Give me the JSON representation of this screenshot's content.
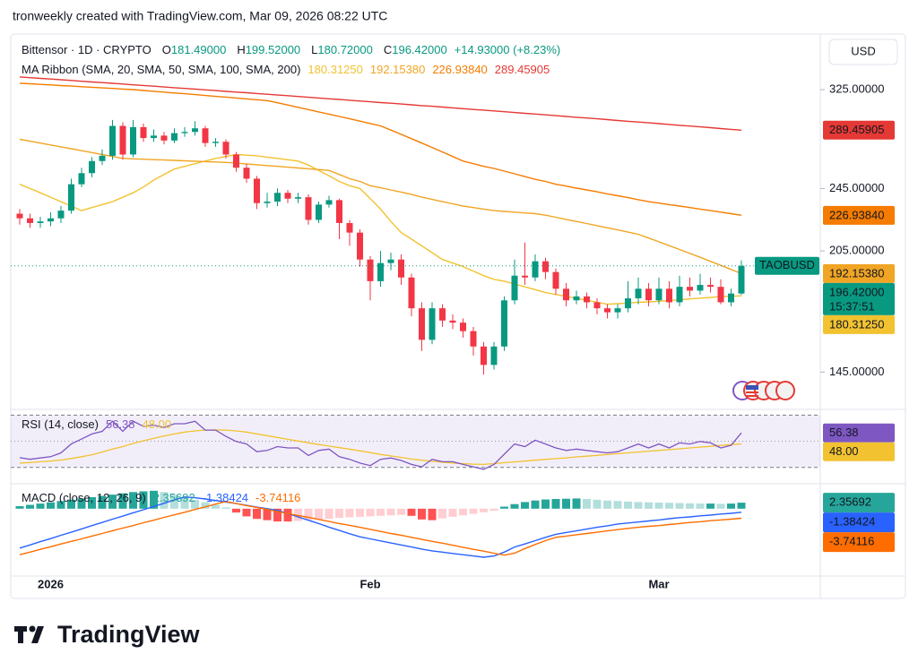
{
  "header": {
    "caption": "tronweekly created with TradingView.com, Mar 09, 2026 08:22 UTC"
  },
  "currency": "USD",
  "footer": {
    "brand": "TradingView"
  },
  "chart_data": [
    {
      "type": "candlestick",
      "title": "Bittensor · 1D · CRYPTO",
      "ohlc_labels": [
        {
          "key": "O",
          "value": "181.49000"
        },
        {
          "key": "H",
          "value": "199.52000"
        },
        {
          "key": "L",
          "value": "180.72000"
        },
        {
          "key": "C",
          "value": "196.42000"
        }
      ],
      "change": "+14.93000 (+8.23%)",
      "categories": [
        null,
        null,
        null,
        "2026",
        null,
        null,
        null,
        null,
        null,
        null,
        null,
        null,
        null,
        null,
        null,
        null,
        null,
        null,
        null,
        null,
        null,
        null,
        null,
        null,
        null,
        null,
        null,
        null,
        null,
        null,
        null,
        null,
        null,
        null,
        "Feb",
        null,
        null,
        null,
        null,
        null,
        null,
        null,
        null,
        null,
        null,
        null,
        null,
        null,
        null,
        null,
        null,
        null,
        null,
        null,
        null,
        null,
        null,
        null,
        null,
        null,
        null,
        null,
        "Mar",
        null,
        null,
        null,
        null,
        null,
        null,
        null,
        null
      ],
      "open": [
        228,
        225,
        222,
        223,
        225,
        230,
        248,
        256,
        265,
        269,
        293,
        270,
        292,
        283,
        285,
        281,
        287,
        288,
        291,
        279,
        280,
        270,
        260,
        252,
        235,
        236,
        242,
        238,
        239,
        224,
        234,
        237,
        222,
        216,
        200,
        188,
        198,
        200,
        190,
        174,
        159,
        174,
        168,
        167,
        163,
        156,
        148,
        156,
        178,
        191,
        190,
        199,
        193,
        184,
        178,
        180,
        177,
        174,
        172,
        174,
        179,
        184,
        178,
        184,
        177,
        185,
        183,
        186,
        185,
        177,
        181.49
      ],
      "high": [
        231,
        228,
        226,
        229,
        233,
        252,
        260,
        268,
        274,
        298,
        296,
        298,
        295,
        290,
        288,
        291,
        292,
        297,
        293,
        283,
        282,
        272,
        263,
        254,
        242,
        245,
        244,
        242,
        241,
        236,
        240,
        238,
        224,
        218,
        202,
        205,
        204,
        203,
        192,
        177,
        177,
        176,
        171,
        169,
        165,
        158,
        158,
        180,
        200,
        210,
        203,
        201,
        195,
        187,
        183,
        182,
        179,
        176,
        176,
        188,
        190,
        187,
        190,
        188,
        191,
        190,
        192,
        190,
        189,
        184,
        199.52
      ],
      "low": [
        221,
        219,
        219,
        220,
        222,
        228,
        246,
        253,
        262,
        266,
        266,
        268,
        280,
        280,
        278,
        279,
        284,
        285,
        276,
        276,
        267,
        257,
        249,
        231,
        232,
        233,
        235,
        235,
        221,
        222,
        232,
        212,
        208,
        196,
        178,
        185,
        194,
        186,
        170,
        154,
        157,
        165,
        164,
        160,
        152,
        144,
        146,
        154,
        176,
        186,
        188,
        189,
        181,
        175,
        176,
        174,
        171,
        169,
        169,
        172,
        176,
        175,
        176,
        174,
        175,
        180,
        181,
        182,
        176,
        175,
        180.72
      ],
      "close": [
        225,
        222,
        223,
        225,
        230,
        248,
        256,
        265,
        269,
        293,
        270,
        292,
        283,
        285,
        281,
        287,
        288,
        291,
        279,
        280,
        270,
        260,
        252,
        235,
        236,
        242,
        238,
        239,
        224,
        234,
        237,
        222,
        216,
        200,
        188,
        198,
        200,
        190,
        174,
        159,
        174,
        168,
        167,
        163,
        156,
        148,
        156,
        178,
        191,
        190,
        199,
        193,
        184,
        178,
        180,
        177,
        174,
        172,
        174,
        179,
        184,
        178,
        184,
        177,
        185,
        183,
        186,
        185,
        177,
        181.49,
        196.42
      ],
      "up_color": "#089981",
      "down_color": "#f23645",
      "ylim": [
        131,
        379
      ],
      "log": true,
      "yticks": [
        {
          "value": 325,
          "label": "325.00000"
        },
        {
          "value": 245,
          "label": "245.00000"
        },
        {
          "value": 205,
          "label": "205.00000"
        },
        {
          "value": 145,
          "label": "145.00000"
        }
      ],
      "legend_title": "MA Ribbon (SMA, 20, SMA, 50, SMA, 100, SMA, 200)",
      "series": [
        {
          "color": "#f2c230",
          "value_label": "180.31250",
          "values": [
            248,
            245,
            242,
            239,
            236,
            233,
            230,
            232,
            234,
            236,
            239,
            242,
            246,
            251,
            255,
            259,
            261,
            263,
            265,
            267,
            268.5,
            270,
            269.5,
            269,
            268,
            267,
            266,
            265,
            262,
            258,
            254,
            250,
            247,
            245,
            238,
            231,
            223,
            216,
            212,
            208,
            204,
            200,
            198,
            196,
            193.5,
            191,
            189,
            188,
            186.5,
            185,
            183.5,
            182,
            181,
            180,
            179,
            178,
            177,
            176,
            176.3,
            176.6,
            177,
            177.2,
            177.5,
            177.9,
            178.3,
            178.7,
            179.1,
            179.5,
            179.9,
            180.1,
            180.31
          ]
        },
        {
          "color": "#f0a524",
          "value_label": "192.15380",
          "values": [
            282,
            280.5,
            279,
            277.5,
            276,
            274.5,
            273,
            271.5,
            270,
            268.5,
            267,
            266.7,
            266.4,
            266.1,
            265.8,
            265.5,
            265.2,
            264.9,
            264.6,
            264.3,
            264,
            263.4,
            262.8,
            262.2,
            261.6,
            261,
            260.4,
            259.8,
            259.2,
            258.6,
            258,
            255,
            252,
            250,
            247,
            245.5,
            244,
            242.5,
            241,
            239,
            237.5,
            236,
            234.5,
            233,
            232,
            231,
            230,
            229.5,
            229,
            228.5,
            228,
            227,
            225.7,
            224.3,
            223,
            221.7,
            220.3,
            219,
            217.7,
            216.3,
            215,
            212.7,
            210.4,
            208.1,
            205.8,
            203.5,
            201.3,
            199,
            196.7,
            194.4,
            192.15
          ]
        },
        {
          "color": "#f57c00",
          "value_label": "226.93840",
          "values": [
            331,
            330.5,
            329.9,
            329.4,
            328.8,
            328.3,
            327.7,
            327.2,
            326.6,
            326.1,
            325.5,
            325,
            324.2,
            323.5,
            322.7,
            321.9,
            321.2,
            320.4,
            319.6,
            318.8,
            318.1,
            317.3,
            316.5,
            315.8,
            315,
            313,
            311,
            309,
            307,
            305,
            303,
            301,
            299,
            297,
            295,
            293,
            289.5,
            286,
            282.5,
            279,
            275.5,
            272,
            268.5,
            265,
            263,
            261,
            259.5,
            257.5,
            255.5,
            253.5,
            251.5,
            250,
            248,
            246.7,
            245.3,
            244,
            242.7,
            241.3,
            240,
            238.7,
            237.3,
            236,
            235,
            234,
            233,
            232,
            231,
            230,
            229,
            228,
            226.94
          ]
        },
        {
          "color": "#e53935",
          "value_label": "289.45905",
          "values": [
            337,
            336.3,
            335.6,
            335,
            334.3,
            333.6,
            332.9,
            332.2,
            331.6,
            330.9,
            330.2,
            329.5,
            328.9,
            328.2,
            327.5,
            326.8,
            326.1,
            325.5,
            324.8,
            324.1,
            323.4,
            322.7,
            322.1,
            321.4,
            320.7,
            320,
            319.4,
            318.7,
            318,
            317.3,
            316.6,
            316,
            315.3,
            314.6,
            313.9,
            313.2,
            312.6,
            311.9,
            311.2,
            310.5,
            309.9,
            309.2,
            308.5,
            307.8,
            307.1,
            306.5,
            305.8,
            305.1,
            304.4,
            303.7,
            303.1,
            302.4,
            301.7,
            301,
            300.3,
            299.7,
            299,
            298.3,
            297.6,
            296.9,
            296.3,
            295.6,
            294.9,
            294.2,
            293.5,
            292.9,
            292.2,
            291.5,
            290.8,
            290.1,
            289.46
          ]
        }
      ],
      "last_price": {
        "symbol": "TAOBUSD",
        "label": "196.42000",
        "countdown": "15:37:51"
      }
    },
    {
      "type": "line",
      "title": "RSI (14, close)",
      "ylim": [
        25,
        73
      ],
      "bands": [
        30,
        70
      ],
      "midline": 50,
      "series": [
        {
          "color": "#7e57c2",
          "value_label": "56.38",
          "values": [
            37.4,
            36.2,
            37.2,
            38.2,
            41.1,
            47.9,
            51.7,
            55.6,
            57.6,
            65.3,
            57.6,
            65.3,
            61.4,
            62.4,
            60.5,
            63.4,
            63.4,
            65.3,
            58.5,
            58.5,
            53.7,
            49.8,
            47.9,
            42.0,
            43.0,
            45.9,
            44.9,
            44.9,
            39.1,
            43.0,
            44.0,
            38.2,
            36.2,
            33.3,
            31.4,
            36.2,
            37.2,
            35.3,
            32.3,
            30.4,
            36.2,
            34.3,
            34.3,
            32.3,
            30.4,
            28.5,
            32.3,
            40.1,
            47.9,
            45.9,
            50.8,
            47.9,
            44.9,
            43.0,
            44.0,
            43.0,
            42.0,
            41.1,
            42.0,
            44.9,
            47.9,
            44.9,
            47.9,
            44.9,
            48.8,
            47.9,
            49.8,
            48.8,
            44.9,
            46.9,
            56.38
          ]
        },
        {
          "color": "#f2c230",
          "value_label": "48.00",
          "values": [
            33.3,
            33.7,
            34.3,
            34.9,
            35.6,
            36.8,
            38.2,
            39.7,
            41.7,
            44.0,
            45.9,
            48.3,
            50.4,
            52.3,
            54.1,
            55.6,
            57.0,
            57.9,
            58.5,
            58.7,
            58.5,
            57.9,
            57.0,
            55.6,
            54.3,
            52.9,
            51.5,
            50.2,
            48.8,
            47.5,
            46.3,
            45.1,
            44.0,
            42.6,
            41.3,
            39.9,
            38.8,
            37.6,
            36.4,
            35.5,
            34.7,
            33.9,
            33.3,
            32.9,
            32.5,
            32.3,
            32.9,
            33.6,
            34.2,
            34.8,
            35.5,
            36.1,
            36.7,
            37.3,
            38.0,
            38.6,
            39.2,
            39.9,
            40.5,
            41.1,
            41.7,
            42.4,
            43.0,
            43.6,
            44.2,
            44.9,
            45.5,
            46.1,
            46.8,
            47.4,
            48.0
          ]
        }
      ]
    },
    {
      "type": "macd",
      "title": "MACD (close, 12, 26, 9)",
      "ylim": [
        -26,
        8
      ],
      "histogram": {
        "value_label": "2.35692",
        "colors": {
          "up_grow": "#26a69a",
          "up_fall": "#b2dfdb",
          "down_grow": "#ff5252",
          "down_fall": "#ffcdd2"
        },
        "values": [
          1,
          1.5,
          2,
          2.5,
          3,
          3.5,
          4,
          4.5,
          5,
          5.5,
          6,
          6.5,
          6.8,
          7,
          6.5,
          5.5,
          4.5,
          3.5,
          2.5,
          1.5,
          0.5,
          -1.5,
          -3,
          -4,
          -4.5,
          -5,
          -5,
          -4.8,
          -4.5,
          -4.2,
          -4,
          -3.6,
          -3.4,
          -3.2,
          -3,
          -2.8,
          -2.6,
          -2.4,
          -2.8,
          -4.2,
          -4.5,
          -3.8,
          -3.2,
          -2.6,
          -2,
          -1.4,
          -0.8,
          0.8,
          1.8,
          2.6,
          3.2,
          3.6,
          3.8,
          3.9,
          4,
          3.8,
          3.5,
          3.2,
          3,
          2.8,
          2.6,
          2.5,
          2.4,
          2.3,
          2.2,
          2.1,
          2,
          2,
          1.9,
          2.0,
          2.35692
        ]
      },
      "series": [
        {
          "color": "#2962ff",
          "value_label": "-1.38424",
          "values": [
            -15.4,
            -14.2,
            -12.9,
            -11.7,
            -10.4,
            -9.2,
            -7.9,
            -6.6,
            -5.4,
            -4.1,
            -2.9,
            -1.6,
            -0.4,
            0.9,
            2.1,
            3.4,
            4.6,
            4.3,
            3.8,
            3.2,
            2.6,
            2.0,
            1.3,
            0.6,
            0,
            -0.7,
            -1.9,
            -3.2,
            -4.5,
            -5.8,
            -7.2,
            -8.5,
            -9.8,
            -11,
            -11.8,
            -12.6,
            -13.4,
            -14.2,
            -15,
            -15.8,
            -16.5,
            -17,
            -17.5,
            -18,
            -18.5,
            -19,
            -18.5,
            -17,
            -15,
            -13.8,
            -12.5,
            -11.2,
            -10,
            -9.3,
            -8.7,
            -8,
            -7.3,
            -6.7,
            -6,
            -5.6,
            -5.2,
            -4.8,
            -4.4,
            -3.9,
            -3.5,
            -3.2,
            -2.8,
            -2.5,
            -2.1,
            -1.8,
            -1.38424
          ]
        },
        {
          "color": "#ff6d00",
          "value_label": "-3.74116",
          "values": [
            -18,
            -17,
            -15.9,
            -14.9,
            -13.8,
            -12.8,
            -11.8,
            -10.7,
            -9.7,
            -8.6,
            -7.6,
            -6.6,
            -5.5,
            -4.5,
            -3.4,
            -2.4,
            -1.4,
            -0.3,
            0.7,
            1.8,
            2.8,
            2.0,
            1.2,
            0.5,
            -0.3,
            -1.1,
            -1.9,
            -2.7,
            -3.4,
            -4.2,
            -5.0,
            -5.8,
            -6.5,
            -7.3,
            -8.1,
            -8.9,
            -9.7,
            -10.4,
            -11.2,
            -12,
            -12.8,
            -13.5,
            -14.3,
            -15.1,
            -15.9,
            -16.6,
            -17.4,
            -18.2,
            -17.4,
            -15.6,
            -14,
            -12.5,
            -11.2,
            -10.7,
            -10.2,
            -9.7,
            -9.2,
            -8.7,
            -8.2,
            -7.7,
            -7.3,
            -6.9,
            -6.6,
            -6.2,
            -5.8,
            -5.4,
            -5.1,
            -4.7,
            -4.4,
            -4.1,
            -3.74116
          ]
        }
      ]
    }
  ]
}
